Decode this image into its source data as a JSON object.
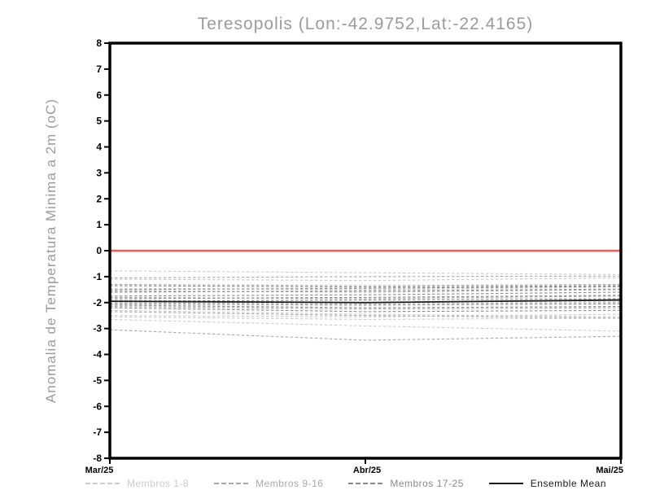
{
  "chart_data": {
    "type": "line",
    "title": "Teresopolis (Lon:-42.9752,Lat:-22.4165)",
    "ylabel": "Anomalia de Temperatura Minima a 2m (oC)",
    "xlabel": "",
    "ylim": [
      -8,
      8
    ],
    "ytick_step": 1,
    "grid": false,
    "legend_position": "bottom",
    "x_categories": [
      "Mar/25",
      "Abr/25",
      "Mai/25"
    ],
    "zero_line": {
      "value": 0,
      "color": "#f25b58"
    },
    "frame_color": "#000000",
    "tick_label_color": "#000000",
    "title_color": "#9b9b9b",
    "series_groups": [
      {
        "name": "Membros 1-8",
        "color": "#cbcbcb",
        "style": "dashed",
        "series": [
          [
            -0.78,
            -0.85,
            -0.92
          ],
          [
            -1.1,
            -1.15,
            -1.05
          ],
          [
            -1.45,
            -1.5,
            -1.4
          ],
          [
            -1.9,
            -2.0,
            -1.95
          ],
          [
            -2.3,
            -2.45,
            -2.55
          ],
          [
            -2.5,
            -2.55,
            -2.45
          ],
          [
            -2.55,
            -2.65,
            -2.6
          ],
          [
            -2.65,
            -2.9,
            -3.1
          ]
        ]
      },
      {
        "name": "Membros 9-16",
        "color": "#a9a9a9",
        "style": "dashed",
        "series": [
          [
            -1.05,
            -1.0,
            -0.98
          ],
          [
            -1.3,
            -1.35,
            -1.3
          ],
          [
            -1.55,
            -1.6,
            -1.5
          ],
          [
            -1.8,
            -1.85,
            -1.75
          ],
          [
            -2.0,
            -2.05,
            -2.0
          ],
          [
            -2.15,
            -2.25,
            -2.2
          ],
          [
            -2.35,
            -2.5,
            -2.6
          ],
          [
            -3.05,
            -3.45,
            -3.3
          ]
        ]
      },
      {
        "name": "Membros 17-25",
        "color": "#8a8a8a",
        "style": "dashed",
        "series": [
          [
            -1.35,
            -1.4,
            -1.35
          ],
          [
            -1.5,
            -1.45,
            -1.38
          ],
          [
            -1.6,
            -1.55,
            -1.48
          ],
          [
            -1.75,
            -1.7,
            -1.6
          ],
          [
            -1.85,
            -1.8,
            -1.72
          ],
          [
            -1.95,
            -1.9,
            -1.85
          ],
          [
            -2.05,
            -2.1,
            -2.05
          ],
          [
            -2.1,
            -2.2,
            -2.15
          ],
          [
            -2.2,
            -2.35,
            -2.3
          ]
        ]
      },
      {
        "name": "Ensemble Mean",
        "color": "#1a1a1a",
        "style": "solid",
        "series": [
          [
            -1.95,
            -2.0,
            -1.9
          ]
        ]
      }
    ]
  }
}
